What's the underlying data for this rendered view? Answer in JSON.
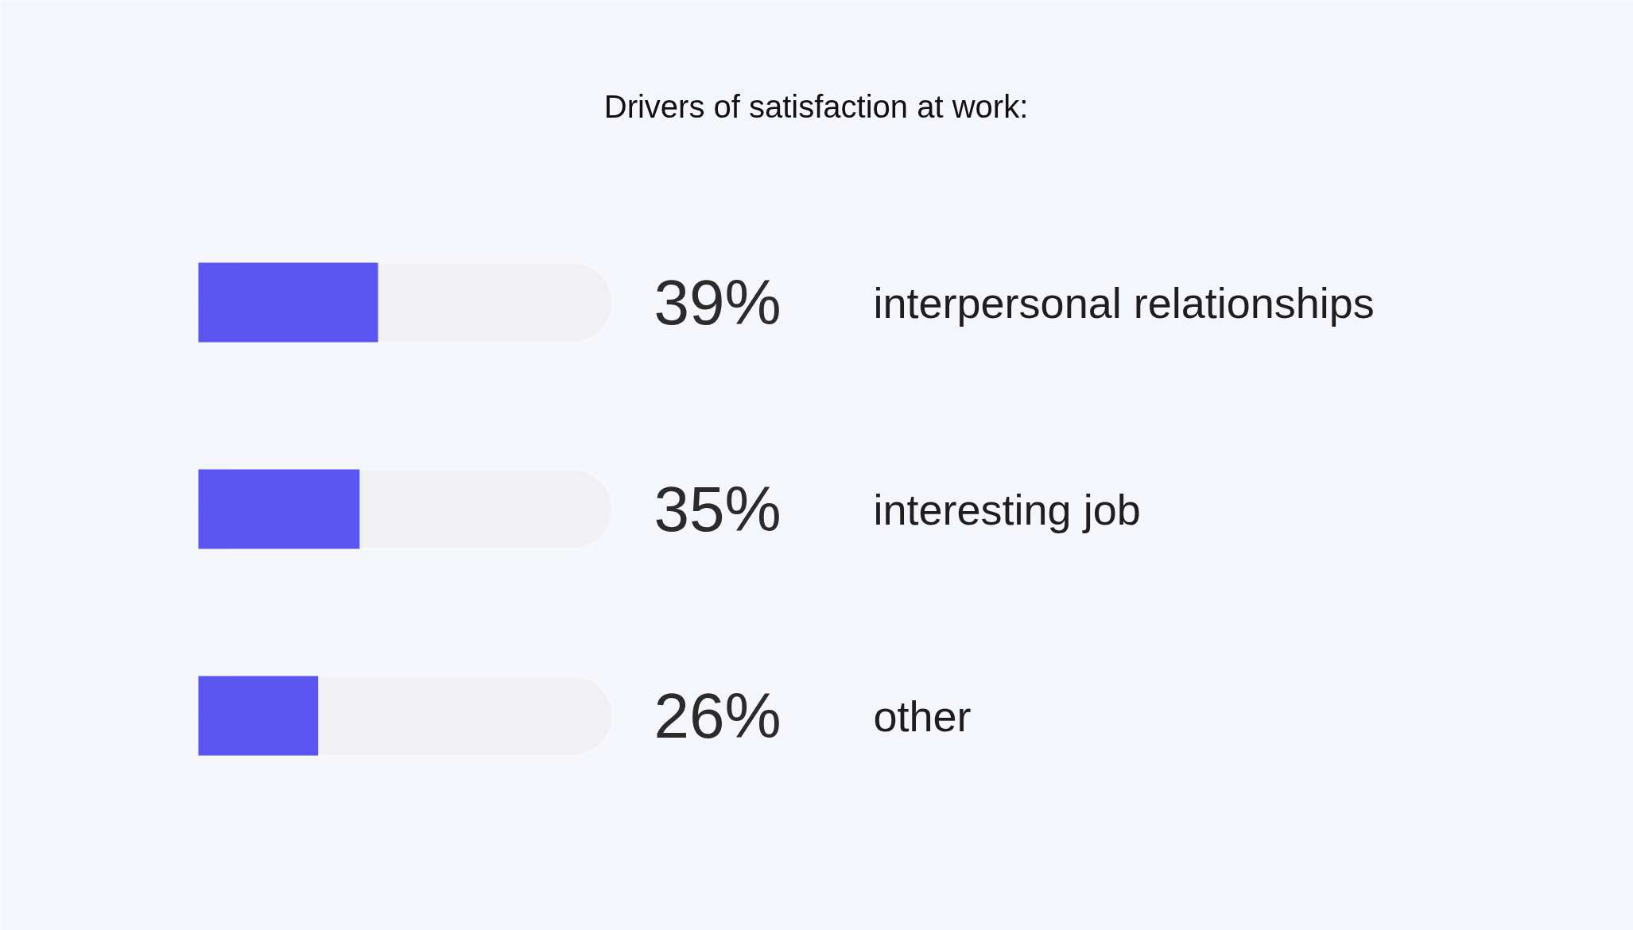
{
  "chart_data": {
    "type": "bar",
    "orientation": "horizontal",
    "title": "Drivers of satisfaction at work:",
    "categories": [
      "interpersonal relationships",
      "interesting job",
      "other"
    ],
    "values": [
      39,
      35,
      26
    ],
    "value_labels": [
      "39%",
      "35%",
      "26%"
    ],
    "color": "#5b55f2"
  }
}
